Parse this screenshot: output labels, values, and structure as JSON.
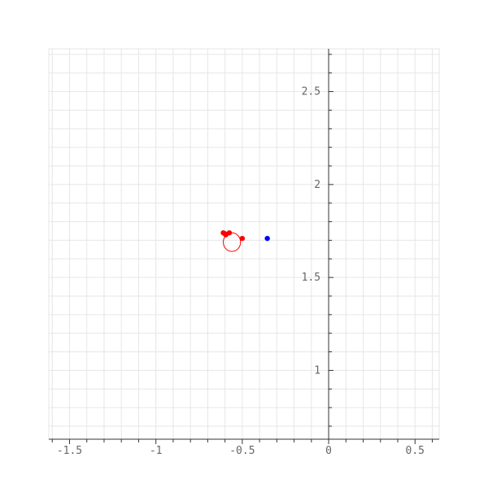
{
  "chart_data": {
    "type": "scatter",
    "xlim": [
      -1.62,
      0.64
    ],
    "ylim": [
      0.63,
      2.73
    ],
    "x_ticks": [
      -1.5,
      -1,
      -0.5,
      0,
      0.5
    ],
    "x_tick_labels": [
      "-1.5",
      "-1",
      "-0.5",
      "0",
      "0.5"
    ],
    "y_ticks": [
      1,
      1.5,
      2,
      2.5
    ],
    "y_tick_labels": [
      "1",
      "1.5",
      "2",
      "2.5"
    ],
    "grid": true,
    "axis_color": "#333333",
    "grid_color": "#e6e6e6",
    "series": [
      {
        "color": "#ff0000",
        "points": [
          {
            "x": -0.61,
            "y": 1.74
          },
          {
            "x": -0.595,
            "y": 1.73
          },
          {
            "x": -0.6,
            "y": 1.735
          },
          {
            "x": -0.575,
            "y": 1.74
          },
          {
            "x": -0.5,
            "y": 1.71
          }
        ]
      },
      {
        "color": "#0000ff",
        "points": [
          {
            "x": -0.355,
            "y": 1.71
          }
        ]
      }
    ],
    "circles": [
      {
        "cx": -0.56,
        "cy": 1.69,
        "r": 0.05,
        "color": "#ff0000"
      }
    ]
  }
}
